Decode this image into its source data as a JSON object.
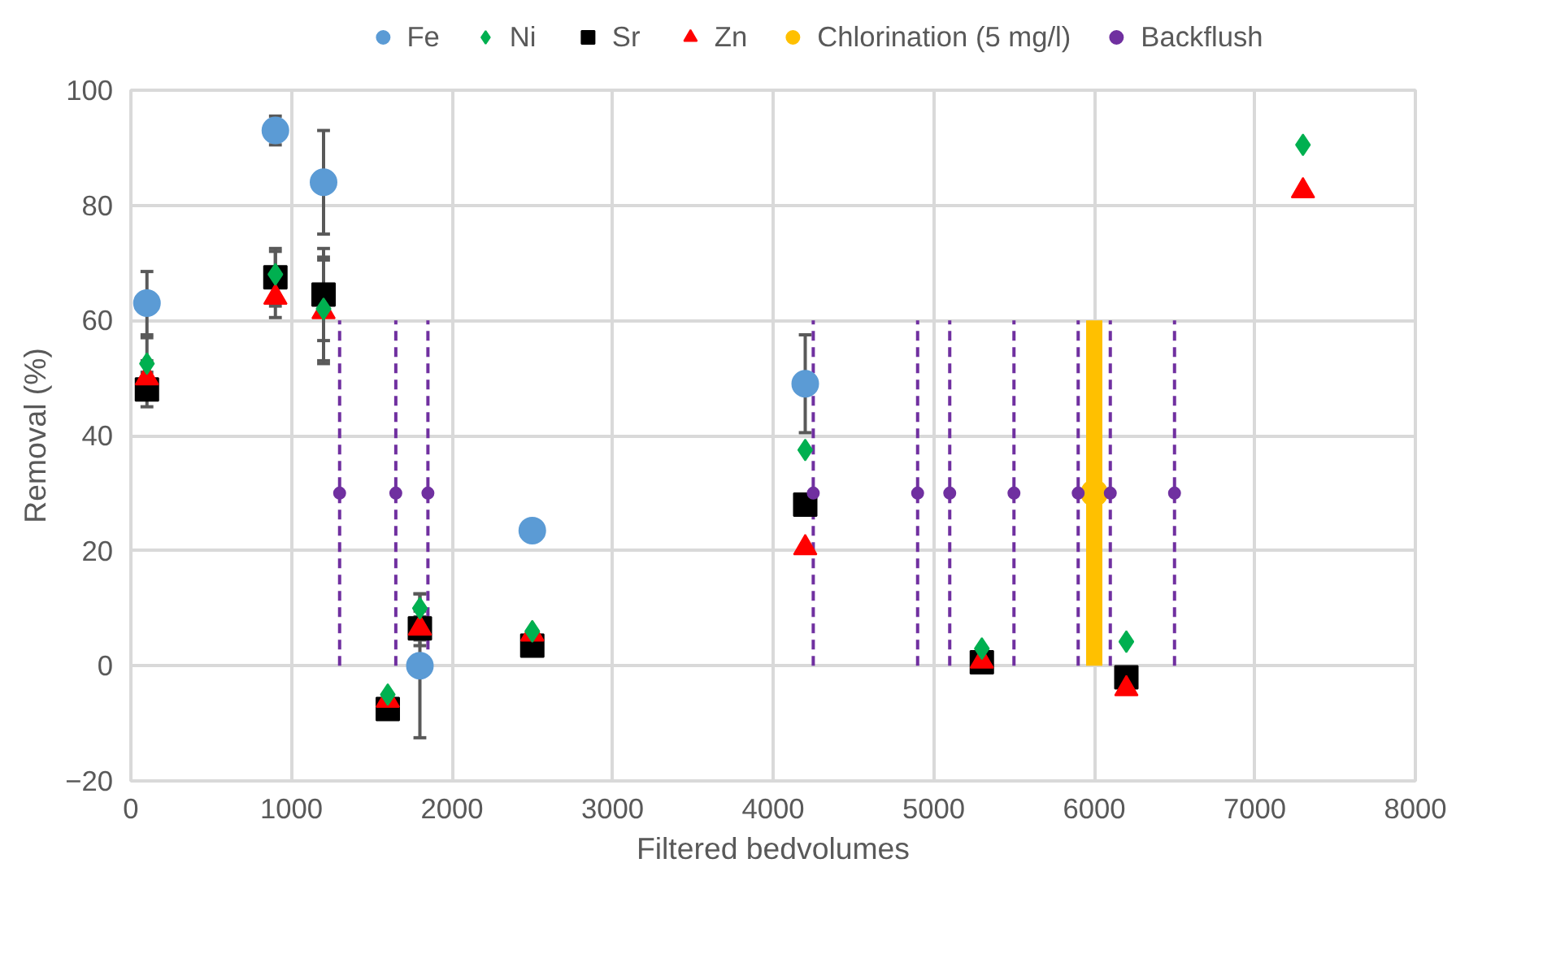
{
  "chart_data": {
    "type": "scatter",
    "xlabel": "Filtered bedvolumes",
    "ylabel": "Removal (%)",
    "xlim": [
      0,
      8000
    ],
    "ylim": [
      -20,
      100
    ],
    "xticks": [
      0,
      1000,
      2000,
      3000,
      4000,
      5000,
      6000,
      7000,
      8000
    ],
    "yticks": [
      -20,
      0,
      20,
      40,
      60,
      80,
      100
    ],
    "grid": true,
    "legend": "top",
    "series": [
      {
        "name": "Fe",
        "color": "#5b9bd5",
        "marker": "circle",
        "x": [
          100,
          900,
          1200,
          1800,
          2500,
          4200
        ],
        "values": [
          63,
          93,
          84,
          0,
          23.5,
          49
        ],
        "errors": [
          5.5,
          2.5,
          9,
          12.5,
          null,
          8.5
        ]
      },
      {
        "name": "Ni",
        "color": "#00b050",
        "marker": "diamond",
        "x": [
          100,
          900,
          1200,
          1600,
          1800,
          2500,
          4200,
          5300,
          6200,
          7300
        ],
        "values": [
          52.5,
          68,
          62,
          -5,
          10,
          6,
          37.5,
          3,
          4.2,
          90.5
        ],
        "errors": [
          4.5,
          4,
          9,
          null,
          2.5,
          null,
          null,
          null,
          null,
          null
        ]
      },
      {
        "name": "Sr",
        "color": "#000000",
        "marker": "square",
        "x": [
          100,
          900,
          1200,
          1600,
          1800,
          2500,
          4200,
          5300,
          6200
        ],
        "values": [
          48,
          67.5,
          64.5,
          -7.5,
          6.5,
          3.5,
          28,
          0.6,
          -2
        ],
        "errors": [
          3,
          5,
          8,
          1,
          3,
          null,
          null,
          null,
          null
        ]
      },
      {
        "name": "Zn",
        "color": "#ff0000",
        "marker": "triangle",
        "x": [
          100,
          900,
          1200,
          1600,
          1800,
          2500,
          4200,
          5300,
          6200,
          7300
        ],
        "values": [
          50,
          64,
          61.5,
          -6,
          6.5,
          5.5,
          20.5,
          0.8,
          -4,
          82.5
        ],
        "errors": [
          3,
          3.5,
          9,
          null,
          2,
          null,
          null,
          null,
          null,
          null
        ]
      },
      {
        "name": "Chlorination (5 mg/l)",
        "color": "#ffc000",
        "marker": "circle",
        "line_style": "solid",
        "x": [
          6000
        ],
        "values": [
          30
        ],
        "errors": [
          30
        ]
      },
      {
        "name": "Backflush",
        "color": "#7030a0",
        "marker": "circle",
        "line_style": "dashed",
        "x": [
          1300,
          1650,
          1850,
          4250,
          4900,
          5100,
          5500,
          5900,
          6100,
          6500
        ],
        "values": [
          30,
          30,
          30,
          30,
          30,
          30,
          30,
          30,
          30,
          30
        ],
        "errors": [
          30,
          30,
          30,
          30,
          30,
          30,
          30,
          30,
          30,
          30
        ]
      }
    ]
  }
}
